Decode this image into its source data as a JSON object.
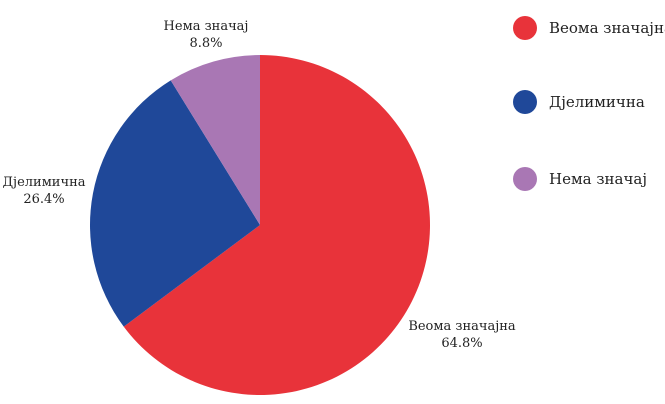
{
  "chart_data": {
    "type": "pie",
    "slices": [
      {
        "label": "Веома значајна",
        "value": 64.8,
        "value_label": "64.8%",
        "color": "#e8333a"
      },
      {
        "label": "Дјелимична",
        "value": 26.4,
        "value_label": "26.4%",
        "color": "#1f4899"
      },
      {
        "label": "Нема значај",
        "value": 8.8,
        "value_label": "8.8%",
        "color": "#a977b4"
      }
    ],
    "legend": {
      "placement": "right",
      "items": [
        "Веома значајна",
        "Дјелимична",
        "Нема значај"
      ]
    },
    "start_angle": "12 o'clock",
    "direction": "clockwise"
  }
}
